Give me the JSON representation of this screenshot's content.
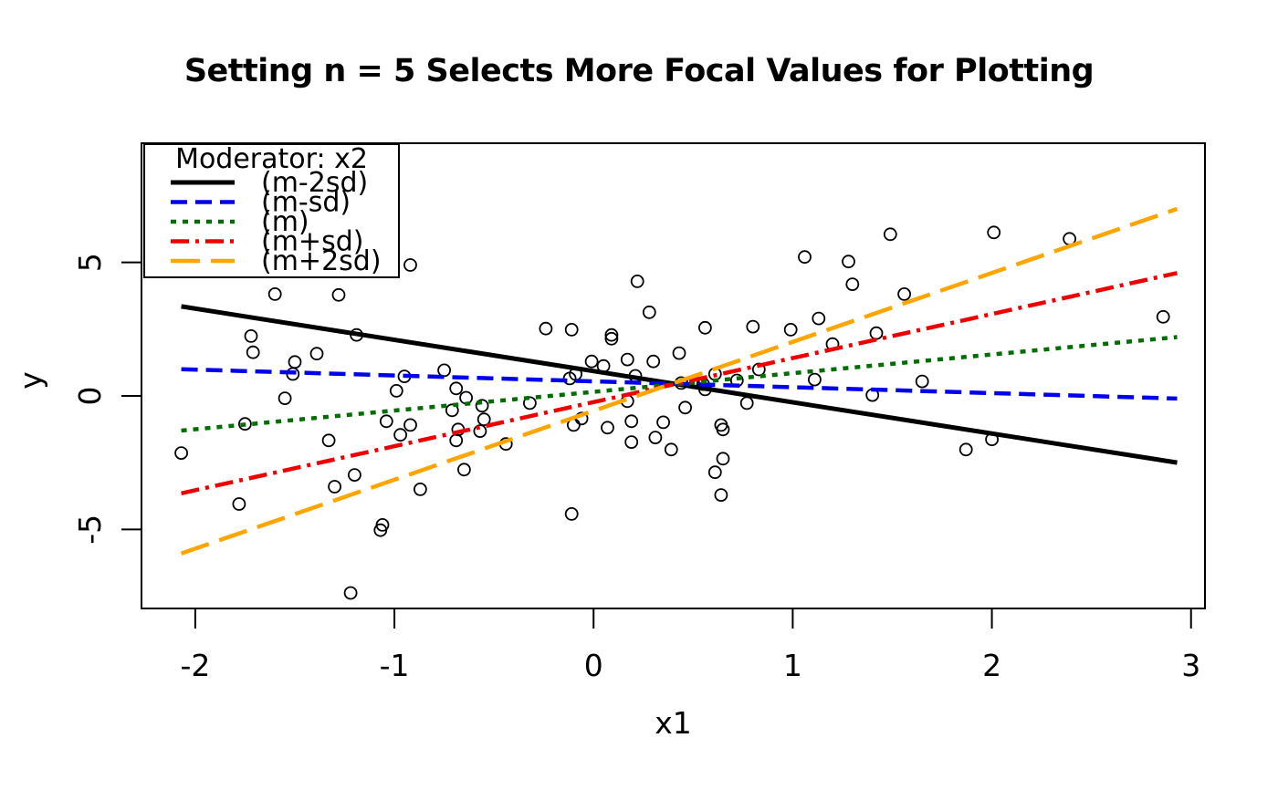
{
  "chart_data": {
    "type": "scatter",
    "title": "Setting n = 5 Selects More Focal Values for Plotting",
    "xlabel": "x1",
    "ylabel": "y",
    "xlim": [
      -2.27,
      3.07
    ],
    "ylim": [
      -7.96,
      9.46
    ],
    "x_ticks": [
      -2,
      -1,
      0,
      1,
      2,
      3
    ],
    "y_ticks": [
      -5,
      0,
      5
    ],
    "grid": false,
    "point_color": "#000000",
    "legend": {
      "title": "Moderator: x2",
      "position": "topleft",
      "entries": [
        {
          "label": "(m-2sd)",
          "color": "#000000",
          "linetype": "solid"
        },
        {
          "label": "(m-sd)",
          "color": "#0000ee",
          "linetype": "dashed"
        },
        {
          "label": "(m)",
          "color": "#006e00",
          "linetype": "dotted"
        },
        {
          "label": "(m+sd)",
          "color": "#ee0000",
          "linetype": "dashdot"
        },
        {
          "label": "(m+2sd)",
          "color": "#ffa500",
          "linetype": "longdash"
        }
      ]
    },
    "lines": [
      {
        "name": "(m-2sd)",
        "color": "#000000",
        "linetype": "solid",
        "x": [
          -2.07,
          2.93
        ],
        "y": [
          3.35,
          -2.5
        ]
      },
      {
        "name": "(m-sd)",
        "color": "#0000ee",
        "linetype": "dashed",
        "x": [
          -2.07,
          2.93
        ],
        "y": [
          1.0,
          -0.1
        ]
      },
      {
        "name": "(m)",
        "color": "#006e00",
        "linetype": "dotted",
        "x": [
          -2.07,
          2.93
        ],
        "y": [
          -1.3,
          2.2
        ]
      },
      {
        "name": "(m+sd)",
        "color": "#ee0000",
        "linetype": "dashdot",
        "x": [
          -2.07,
          2.93
        ],
        "y": [
          -3.65,
          4.6
        ]
      },
      {
        "name": "(m+2sd)",
        "color": "#ffa500",
        "linetype": "longdash",
        "x": [
          -2.07,
          2.93
        ],
        "y": [
          -5.9,
          7.0
        ]
      }
    ],
    "points": [
      [
        -1.6,
        3.81
      ],
      [
        -1.28,
        3.78
      ],
      [
        -1.72,
        2.24
      ],
      [
        -1.19,
        2.28
      ],
      [
        -1.71,
        1.63
      ],
      [
        -1.39,
        1.58
      ],
      [
        -1.5,
        1.27
      ],
      [
        -1.51,
        0.82
      ],
      [
        -0.95,
        0.73
      ],
      [
        -0.75,
        0.96
      ],
      [
        -0.69,
        0.28
      ],
      [
        -0.99,
        0.19
      ],
      [
        -1.55,
        -0.09
      ],
      [
        -0.64,
        -0.07
      ],
      [
        -0.56,
        -0.37
      ],
      [
        -0.71,
        -0.54
      ],
      [
        -0.55,
        -0.88
      ],
      [
        -1.75,
        -1.05
      ],
      [
        -1.04,
        -0.95
      ],
      [
        -0.92,
        -1.09
      ],
      [
        -0.97,
        -1.46
      ],
      [
        -0.57,
        -1.32
      ],
      [
        -0.68,
        -1.26
      ],
      [
        -0.69,
        -1.67
      ],
      [
        -2.07,
        -2.14
      ],
      [
        -1.33,
        -1.67
      ],
      [
        -0.65,
        -2.76
      ],
      [
        -1.2,
        -2.96
      ],
      [
        -1.3,
        -3.4
      ],
      [
        -0.87,
        -3.5
      ],
      [
        -1.78,
        -4.05
      ],
      [
        -1.06,
        -4.83
      ],
      [
        -1.07,
        -5.03
      ],
      [
        -1.22,
        -7.38
      ],
      [
        0.22,
        4.29
      ],
      [
        0.28,
        3.13
      ],
      [
        -0.24,
        2.52
      ],
      [
        -0.11,
        2.48
      ],
      [
        0.09,
        2.28
      ],
      [
        0.09,
        2.14
      ],
      [
        0.56,
        2.55
      ],
      [
        0.8,
        2.59
      ],
      [
        0.99,
        2.48
      ],
      [
        1.13,
        2.9
      ],
      [
        1.2,
        1.94
      ],
      [
        0.43,
        1.6
      ],
      [
        -0.01,
        1.29
      ],
      [
        0.05,
        1.12
      ],
      [
        0.17,
        1.36
      ],
      [
        0.3,
        1.29
      ],
      [
        -0.12,
        0.65
      ],
      [
        -0.09,
        0.82
      ],
      [
        0.21,
        0.75
      ],
      [
        0.44,
        0.48
      ],
      [
        0.5,
        0.51
      ],
      [
        0.55,
        0.44
      ],
      [
        0.56,
        0.24
      ],
      [
        0.61,
        0.82
      ],
      [
        0.72,
        0.58
      ],
      [
        0.83,
        0.99
      ],
      [
        1.11,
        0.61
      ],
      [
        -0.32,
        -0.27
      ],
      [
        0.17,
        -0.2
      ],
      [
        0.77,
        -0.27
      ],
      [
        0.46,
        -0.44
      ],
      [
        -0.06,
        -0.85
      ],
      [
        -0.1,
        -1.09
      ],
      [
        0.19,
        -0.95
      ],
      [
        0.35,
        -0.99
      ],
      [
        0.07,
        -1.19
      ],
      [
        -0.44,
        -1.8
      ],
      [
        0.19,
        -1.73
      ],
      [
        0.31,
        -1.56
      ],
      [
        0.39,
        -2.01
      ],
      [
        0.64,
        -1.09
      ],
      [
        0.65,
        -1.26
      ],
      [
        0.65,
        -2.35
      ],
      [
        0.61,
        -2.86
      ],
      [
        0.64,
        -3.71
      ],
      [
        -0.11,
        -4.42
      ],
      [
        -0.92,
        4.9
      ],
      [
        1.06,
        5.2
      ],
      [
        1.49,
        6.05
      ],
      [
        2.01,
        6.12
      ],
      [
        2.39,
        5.88
      ],
      [
        1.28,
        5.03
      ],
      [
        1.3,
        4.18
      ],
      [
        1.56,
        3.81
      ],
      [
        2.86,
        2.96
      ],
      [
        1.42,
        2.35
      ],
      [
        1.65,
        0.54
      ],
      [
        1.4,
        0.03
      ],
      [
        2.0,
        -1.63
      ],
      [
        1.87,
        -2.01
      ]
    ]
  }
}
